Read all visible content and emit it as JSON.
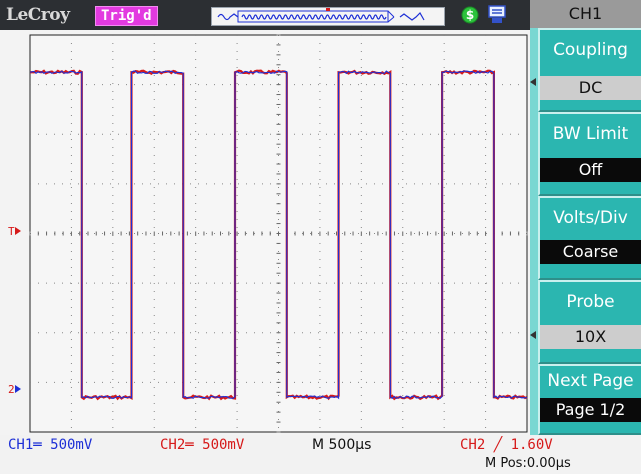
{
  "topbar": {
    "brand": "LeCroy",
    "status": "Trig'd"
  },
  "menu": {
    "header": "CH1",
    "items": [
      {
        "label": "Coupling",
        "value": "DC"
      },
      {
        "label": "BW Limit",
        "value": "Off"
      },
      {
        "label": "Volts/Div",
        "value": "Coarse"
      },
      {
        "label": "Probe",
        "value": "10X"
      },
      {
        "label": "Next Page",
        "value": "Page 1/2"
      }
    ]
  },
  "markers": {
    "trigger": "T",
    "ch": "2"
  },
  "status": {
    "ch1": "CH1═ 500mV",
    "ch2": "CH2═ 500mV",
    "timebase": "M 500μs",
    "trigger": "CH2 ╱ 1.60V",
    "mpos": "M Pos:0.00μs"
  },
  "colors": {
    "ch1": "#1d2fd6",
    "ch2": "#d61a1a",
    "menu_bg": "#79d7d2",
    "button_bg": "#2bb6b0",
    "trig_badge": "#e23ae0"
  },
  "chart_data": {
    "type": "line",
    "x_units": "divisions",
    "y_units": "divisions",
    "xlim": [
      0,
      12
    ],
    "ylim": [
      -4,
      4
    ],
    "grid": true,
    "series": [
      {
        "name": "CH2",
        "x": [
          0,
          1.25,
          1.25,
          2.45,
          2.45,
          3.7,
          3.7,
          4.95,
          4.95,
          6.2,
          6.2,
          7.45,
          7.45,
          8.7,
          8.7,
          9.95,
          9.95,
          11.2,
          11.2,
          12
        ],
        "y": [
          3.25,
          3.25,
          -3.3,
          -3.3,
          3.25,
          3.25,
          -3.3,
          -3.3,
          3.25,
          3.25,
          -3.3,
          -3.3,
          3.25,
          3.25,
          -3.3,
          -3.3,
          3.25,
          3.25,
          -3.3,
          -3.3
        ]
      },
      {
        "name": "CH1",
        "x": [
          0,
          1.25,
          1.25,
          2.45,
          2.45,
          3.7,
          3.7,
          4.95,
          4.95,
          6.2,
          6.2,
          7.45,
          7.45,
          8.7,
          8.7,
          9.95,
          9.95,
          11.2,
          11.2,
          12
        ],
        "y": [
          3.25,
          3.25,
          -3.3,
          -3.3,
          3.25,
          3.25,
          -3.3,
          -3.3,
          3.25,
          3.25,
          -3.3,
          -3.3,
          3.25,
          3.25,
          -3.3,
          -3.3,
          3.25,
          3.25,
          -3.3,
          -3.3
        ]
      }
    ]
  }
}
